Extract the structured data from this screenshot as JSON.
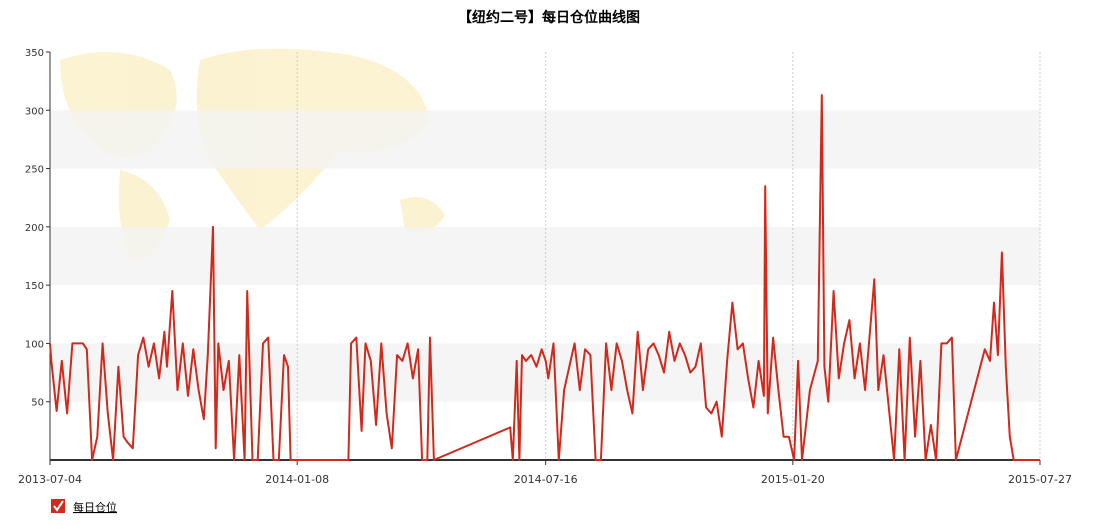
{
  "chart_data": {
    "type": "line",
    "title": "【纽约二号】每日仓位曲线图",
    "x": [
      "2013-07-04",
      "2013-07-05",
      "2013-07-09",
      "2013-07-13",
      "2013-07-17",
      "2013-07-21",
      "2013-07-25",
      "2013-07-29",
      "2013-08-01",
      "2013-08-05",
      "2013-08-09",
      "2013-08-13",
      "2013-08-17",
      "2013-08-21",
      "2013-08-25",
      "2013-08-29",
      "2013-09-01",
      "2013-09-05",
      "2013-09-09",
      "2013-09-13",
      "2013-09-17",
      "2013-09-21",
      "2013-09-25",
      "2013-09-29",
      "2013-10-01",
      "2013-10-05",
      "2013-10-09",
      "2013-10-13",
      "2013-10-17",
      "2013-10-21",
      "2013-10-25",
      "2013-10-29",
      "2013-11-01",
      "2013-11-05",
      "2013-11-07",
      "2013-11-09",
      "2013-11-13",
      "2013-11-17",
      "2013-11-21",
      "2013-11-25",
      "2013-11-29",
      "2013-12-01",
      "2013-12-05",
      "2013-12-09",
      "2013-12-13",
      "2013-12-17",
      "2013-12-21",
      "2013-12-25",
      "2013-12-29",
      "2014-01-01",
      "2014-01-03",
      "2014-02-16",
      "2014-02-18",
      "2014-02-22",
      "2014-02-26",
      "2014-03-01",
      "2014-03-05",
      "2014-03-09",
      "2014-03-13",
      "2014-03-17",
      "2014-03-21",
      "2014-03-25",
      "2014-03-29",
      "2014-04-02",
      "2014-04-06",
      "2014-04-10",
      "2014-04-13",
      "2014-04-17",
      "2014-04-19",
      "2014-04-22",
      "2014-06-19",
      "2014-06-21",
      "2014-06-24",
      "2014-06-26",
      "2014-06-28",
      "2014-07-01",
      "2014-07-05",
      "2014-07-09",
      "2014-07-13",
      "2014-07-16",
      "2014-07-18",
      "2014-07-22",
      "2014-07-26",
      "2014-07-30",
      "2014-08-03",
      "2014-08-07",
      "2014-08-11",
      "2014-08-15",
      "2014-08-19",
      "2014-08-23",
      "2014-08-27",
      "2014-08-31",
      "2014-09-04",
      "2014-09-08",
      "2014-09-12",
      "2014-09-16",
      "2014-09-20",
      "2014-09-24",
      "2014-09-28",
      "2014-10-02",
      "2014-10-06",
      "2014-10-10",
      "2014-10-14",
      "2014-10-18",
      "2014-10-22",
      "2014-10-26",
      "2014-10-30",
      "2014-11-03",
      "2014-11-07",
      "2014-11-11",
      "2014-11-15",
      "2014-11-19",
      "2014-11-23",
      "2014-11-27",
      "2014-12-01",
      "2014-12-05",
      "2014-12-09",
      "2014-12-13",
      "2014-12-17",
      "2014-12-21",
      "2014-12-25",
      "2014-12-29",
      "2014-12-30",
      "2015-01-01",
      "2015-01-05",
      "2015-01-09",
      "2015-01-13",
      "2015-01-17",
      "2015-01-21",
      "2015-01-24",
      "2015-01-27",
      "2015-01-30",
      "2015-02-02",
      "2015-02-08",
      "2015-02-11",
      "2015-02-13",
      "2015-02-16",
      "2015-02-20",
      "2015-02-24",
      "2015-02-28",
      "2015-03-04",
      "2015-03-08",
      "2015-03-12",
      "2015-03-16",
      "2015-03-23",
      "2015-03-26",
      "2015-03-30",
      "2015-04-03",
      "2015-04-07",
      "2015-04-11",
      "2015-04-15",
      "2015-04-19",
      "2015-04-23",
      "2015-04-27",
      "2015-05-01",
      "2015-05-05",
      "2015-05-09",
      "2015-05-13",
      "2015-05-17",
      "2015-05-21",
      "2015-05-24",
      "2015-06-15",
      "2015-06-19",
      "2015-06-22",
      "2015-06-25",
      "2015-06-28",
      "2015-07-01",
      "2015-07-04",
      "2015-07-07",
      "2015-07-27"
    ],
    "series": [
      {
        "name": "每日仓位",
        "color": "#d12a1c",
        "values": [
          100,
          85,
          42,
          85,
          40,
          100,
          100,
          100,
          95,
          0,
          20,
          100,
          40,
          0,
          80,
          20,
          15,
          10,
          90,
          105,
          80,
          100,
          70,
          110,
          80,
          145,
          60,
          100,
          55,
          95,
          60,
          35,
          90,
          200,
          10,
          100,
          60,
          85,
          0,
          90,
          0,
          145,
          0,
          0,
          100,
          105,
          0,
          0,
          90,
          80,
          0,
          0,
          100,
          105,
          25,
          100,
          85,
          30,
          100,
          40,
          10,
          90,
          85,
          100,
          70,
          95,
          0,
          0,
          105,
          0,
          28,
          0,
          85,
          0,
          90,
          85,
          90,
          80,
          95,
          85,
          70,
          100,
          0,
          60,
          80,
          100,
          60,
          95,
          90,
          0,
          0,
          100,
          60,
          100,
          85,
          60,
          40,
          110,
          60,
          95,
          100,
          90,
          75,
          110,
          85,
          100,
          90,
          75,
          80,
          100,
          45,
          40,
          50,
          20,
          85,
          135,
          95,
          100,
          70,
          45,
          85,
          55,
          235,
          40,
          105,
          60,
          20,
          20,
          0,
          85,
          0,
          30,
          60,
          85,
          313,
          80,
          50,
          145,
          70,
          100,
          120,
          70,
          100,
          60,
          155,
          60,
          90,
          45,
          0,
          95,
          0,
          105,
          20,
          85,
          0,
          30,
          0,
          100,
          100,
          105,
          0,
          95,
          85,
          135,
          90,
          178,
          80,
          20,
          0,
          0
        ]
      }
    ],
    "xlim": [
      "2013-07-04",
      "2015-07-27"
    ],
    "xticks": [
      "2013-07-04",
      "2014-01-08",
      "2014-07-16",
      "2015-01-20",
      "2015-07-27"
    ],
    "ylim": [
      0,
      350
    ],
    "yticks": [
      50,
      100,
      150,
      200,
      250,
      300,
      350
    ],
    "grid": true
  }
}
